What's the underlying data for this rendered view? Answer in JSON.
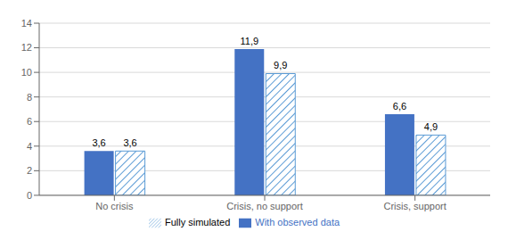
{
  "chart_data": {
    "type": "bar",
    "categories": [
      "No crisis",
      "Crisis, no support",
      "Crisis, support"
    ],
    "series": [
      {
        "name": "With observed data",
        "color": "#4472C4",
        "values": [
          3.6,
          11.9,
          6.6
        ],
        "value_labels": [
          "3,6",
          "11,9",
          "6,6"
        ]
      },
      {
        "name": "Fully simulated",
        "color": "#5B9BD5",
        "values": [
          3.6,
          9.9,
          4.9
        ],
        "value_labels": [
          "3,6",
          "9,9",
          "4,9"
        ]
      }
    ],
    "ylim": [
      0,
      14
    ],
    "yticks": [
      0,
      2,
      4,
      6,
      8,
      10,
      12,
      14
    ],
    "grid": true,
    "legend": "bottom",
    "data_labels": true
  }
}
